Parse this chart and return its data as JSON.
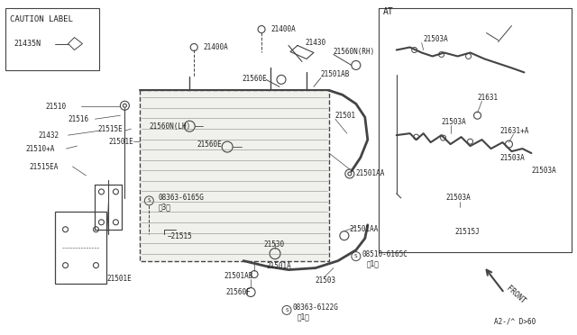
{
  "bg_color": "#ffffff",
  "line_color": "#444444",
  "text_color": "#222222",
  "fig_width": 6.4,
  "fig_height": 3.72,
  "caution_label_text": "CAUTION LABEL",
  "caution_part": "21435N",
  "diagram_number": "A2-/^ D>60"
}
